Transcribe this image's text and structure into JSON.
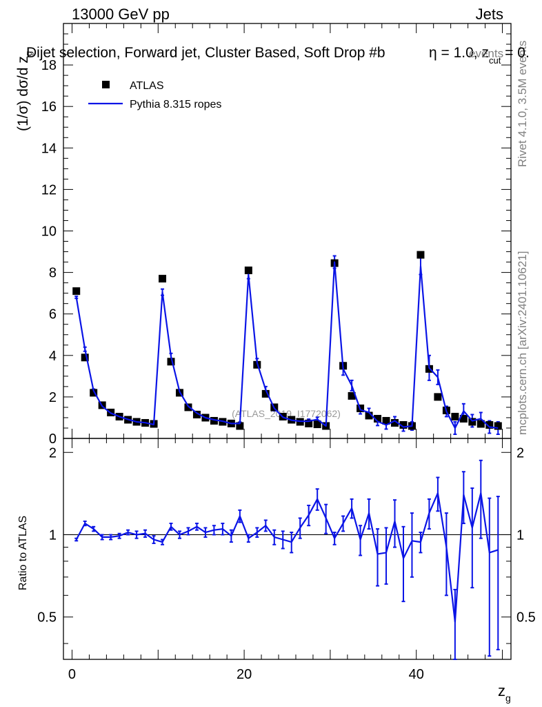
{
  "header": {
    "left": "13000 GeV pp",
    "right": "Jets",
    "title_main": "Dijet selection, Forward jet, Cluster Based, Soft Drop #b",
    "title_eta": "η = 1.0, z",
    "title_sub": "cut",
    "title_tail": " = 0.",
    "title_overlap": "events"
  },
  "side": {
    "rivet": "Rivet 4.1.0,  3.5M events",
    "mcplots": "mcplots.cern.ch [arXiv:2401.10621]"
  },
  "watermark": "(ATLAS_2019_I1772062)",
  "legend": {
    "data_label": "ATLAS",
    "mc_label": "Pythia 8.315 ropes"
  },
  "colors": {
    "data": "#000000",
    "mc": "#0a14e6",
    "axis": "#000000"
  },
  "chart_data": [
    {
      "type": "scatter",
      "panel": "main",
      "ylabel_main": "(1/σ) dσ/d z",
      "ylabel_sub": "g",
      "xlim": [
        -1,
        51
      ],
      "ylim": [
        0,
        20
      ],
      "yticks": [
        0,
        2,
        4,
        6,
        8,
        10,
        12,
        14,
        16,
        18
      ],
      "ytick_labels": [
        "0",
        "2",
        "4",
        "6",
        "8",
        "10",
        "12",
        "14",
        "16",
        "18"
      ],
      "x": [
        0.5,
        1.5,
        2.5,
        3.5,
        4.5,
        5.5,
        6.5,
        7.5,
        8.5,
        9.5,
        10.5,
        11.5,
        12.5,
        13.5,
        14.5,
        15.5,
        16.5,
        17.5,
        18.5,
        19.5,
        20.5,
        21.5,
        22.5,
        23.5,
        24.5,
        25.5,
        26.5,
        27.5,
        28.5,
        29.5,
        30.5,
        31.5,
        32.5,
        33.5,
        34.5,
        35.5,
        36.5,
        37.5,
        38.5,
        39.5,
        40.5,
        41.5,
        42.5,
        43.5,
        44.5,
        45.5,
        46.5,
        47.5,
        48.5,
        49.5
      ],
      "series": [
        {
          "name": "ATLAS",
          "values": [
            7.1,
            3.9,
            2.2,
            1.6,
            1.25,
            1.05,
            0.9,
            0.8,
            0.75,
            0.7,
            7.7,
            3.7,
            2.2,
            1.5,
            1.15,
            1.0,
            0.85,
            0.8,
            0.72,
            0.6,
            8.1,
            3.55,
            2.15,
            1.5,
            1.05,
            0.9,
            0.8,
            0.72,
            0.68,
            0.6,
            8.45,
            3.5,
            2.05,
            1.45,
            1.1,
            0.95,
            0.85,
            0.75,
            0.65,
            0.6,
            8.85,
            3.35,
            2.0,
            1.35,
            1.05,
            0.95,
            0.8,
            0.7,
            0.65,
            0.6
          ]
        },
        {
          "name": "Pythia 8.315 ropes",
          "values": [
            6.8,
            4.3,
            2.3,
            1.55,
            1.22,
            1.05,
            0.92,
            0.8,
            0.76,
            0.67,
            7.05,
            3.95,
            2.25,
            1.55,
            1.22,
            1.0,
            0.9,
            0.83,
            0.72,
            0.72,
            7.9,
            3.65,
            2.35,
            1.45,
            1.02,
            0.88,
            0.83,
            0.83,
            0.92,
            0.6,
            8.5,
            3.35,
            2.55,
            1.38,
            1.25,
            0.82,
            0.65,
            0.85,
            0.55,
            0.6,
            8.3,
            3.4,
            2.95,
            1.3,
            0.5,
            1.32,
            0.85,
            0.95,
            0.55,
            0.5
          ],
          "errors": [
            0.05,
            0.1,
            0.08,
            0.07,
            0.06,
            0.06,
            0.06,
            0.05,
            0.05,
            0.05,
            0.15,
            0.15,
            0.1,
            0.08,
            0.08,
            0.08,
            0.07,
            0.07,
            0.07,
            0.07,
            0.2,
            0.2,
            0.15,
            0.12,
            0.12,
            0.1,
            0.1,
            0.1,
            0.1,
            0.1,
            0.3,
            0.3,
            0.25,
            0.2,
            0.2,
            0.2,
            0.2,
            0.2,
            0.2,
            0.2,
            0.4,
            0.6,
            0.35,
            0.25,
            0.3,
            0.35,
            0.3,
            0.3,
            0.3,
            0.3
          ]
        }
      ]
    },
    {
      "type": "line",
      "panel": "ratio",
      "ylabel": "Ratio to ATLAS",
      "xlabel_main": "z",
      "xlabel_sub": "g",
      "xlim": [
        -1,
        51
      ],
      "ylim": [
        0.35,
        2.25
      ],
      "reference_line": 1,
      "yticks": [
        0.5,
        1,
        2
      ],
      "ytick_labels": [
        "0.5",
        "1",
        "2"
      ],
      "xticks": [
        0,
        20,
        40
      ],
      "xtick_labels": [
        "0",
        "20",
        "40"
      ],
      "x": [
        0.5,
        1.5,
        2.5,
        3.5,
        4.5,
        5.5,
        6.5,
        7.5,
        8.5,
        9.5,
        10.5,
        11.5,
        12.5,
        13.5,
        14.5,
        15.5,
        16.5,
        17.5,
        18.5,
        19.5,
        20.5,
        21.5,
        22.5,
        23.5,
        24.5,
        25.5,
        26.5,
        27.5,
        28.5,
        29.5,
        30.5,
        31.5,
        32.5,
        33.5,
        34.5,
        35.5,
        36.5,
        37.5,
        38.5,
        39.5,
        40.5,
        41.5,
        42.5,
        43.5,
        44.5,
        45.5,
        46.5,
        47.5,
        48.5,
        49.5
      ],
      "series": [
        {
          "name": "Pythia 8.315 ropes / ATLAS",
          "values": [
            0.96,
            1.1,
            1.05,
            0.98,
            0.98,
            0.99,
            1.02,
            1.0,
            1.01,
            0.96,
            0.94,
            1.07,
            1.0,
            1.03,
            1.07,
            1.02,
            1.04,
            1.05,
            0.99,
            1.17,
            0.97,
            1.02,
            1.08,
            0.98,
            0.96,
            0.94,
            1.06,
            1.18,
            1.35,
            1.15,
            0.97,
            1.1,
            1.25,
            0.96,
            1.2,
            0.85,
            0.86,
            1.12,
            0.82,
            0.95,
            0.94,
            1.2,
            1.42,
            0.9,
            0.48,
            1.4,
            1.06,
            1.42,
            0.86,
            0.88
          ],
          "errors": [
            0.01,
            0.02,
            0.02,
            0.02,
            0.02,
            0.02,
            0.02,
            0.03,
            0.03,
            0.03,
            0.02,
            0.03,
            0.03,
            0.03,
            0.03,
            0.04,
            0.04,
            0.05,
            0.05,
            0.06,
            0.03,
            0.04,
            0.05,
            0.06,
            0.07,
            0.08,
            0.09,
            0.1,
            0.12,
            0.14,
            0.05,
            0.07,
            0.1,
            0.12,
            0.15,
            0.2,
            0.2,
            0.22,
            0.25,
            0.25,
            0.08,
            0.15,
            0.2,
            0.3,
            0.15,
            0.3,
            0.42,
            0.45,
            0.5,
            0.5
          ]
        }
      ]
    }
  ]
}
